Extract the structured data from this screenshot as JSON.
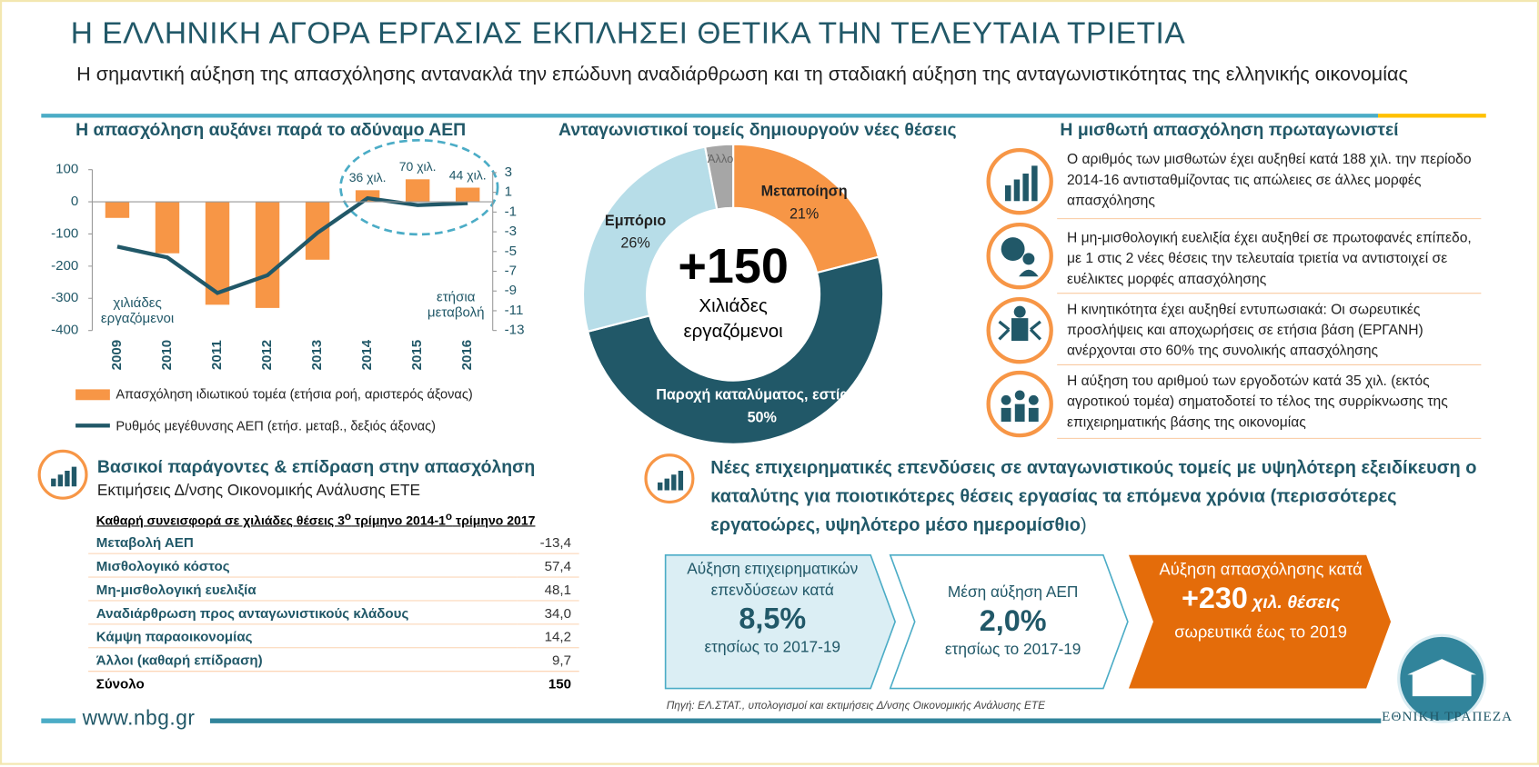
{
  "header": {
    "title": "Η ΕΛΛΗΝΙΚΗ ΑΓΟΡΑ ΕΡΓΑΣΙΑΣ ΕΚΠΛΗΣΕΙ ΘΕΤΙΚΑ ΤΗΝ ΤΕΛΕΥΤΑΙΑ ΤΡΙΕΤΙΑ",
    "subtitle": "Η σημαντική αύξηση της απασχόλησης αντανακλά την επώδυνη αναδιάρθρωση και τη σταδιακή αύξηση της ανταγωνιστικότητας της ελληνικής οικονομίας"
  },
  "chart_data": [
    {
      "type": "bar",
      "title": "Η απασχόληση αυξάνει παρά το αδύναμο ΑΕΠ",
      "categories": [
        "2009",
        "2010",
        "2011",
        "2012",
        "2013",
        "2014",
        "2015",
        "2016"
      ],
      "series": [
        {
          "name": "Απασχόληση ιδιωτικού τομέα (ετήσια ροή, αριστερός άξονας)",
          "color": "#f79646",
          "values": [
            -50,
            -160,
            -320,
            -330,
            -180,
            36,
            70,
            44
          ],
          "value_labels": [
            null,
            null,
            null,
            null,
            null,
            "36 χιλ.",
            "70 χιλ.",
            "44 χιλ."
          ]
        },
        {
          "name": "Ρυθμός μεγέθυνσης ΑΕΠ (ετήσ. μεταβ., δεξιός άξονας)",
          "type": "line",
          "axis": "y2",
          "color": "#215868",
          "values": [
            -4.5,
            -5.6,
            -9.2,
            -7.4,
            -3.1,
            0.4,
            -0.3,
            -0.1
          ]
        }
      ],
      "ylim": [
        -400,
        100
      ],
      "yticks": [
        100,
        0,
        -100,
        -200,
        -300,
        -400
      ],
      "y2lim": [
        -13,
        3
      ],
      "y2ticks": [
        3,
        1,
        -1,
        -3,
        -5,
        -7,
        -9,
        -11,
        -13
      ],
      "ylabel": "χιλιάδες εργαζόμενοι",
      "y2label": "ετήσια μεταβολή"
    },
    {
      "type": "pie",
      "title": "Ανταγωνιστικοί τομείς δημιουργούν νέες θέσεις",
      "categories": [
        "Μεταποίηση",
        "Παροχή καταλύματος, εστίαση",
        "Εμπόριο",
        "Άλλο"
      ],
      "values": [
        21,
        50,
        26,
        3
      ],
      "value_labels": [
        "21%",
        "50%",
        "26%",
        null
      ],
      "colors": [
        "#f79646",
        "#215868",
        "#b7dde8",
        "#a6a6a6"
      ],
      "center_value": "+150",
      "center_label": "Χιλιάδες εργαζόμενοι"
    }
  ],
  "panel": {
    "title": "Η μισθωτή απασχόληση πρωταγωνιστεί",
    "items": [
      "Ο αριθμός των μισθωτών έχει αυξηθεί κατά 188 χιλ. την περίοδο 2014-16 αντισταθμίζοντας τις απώλειες σε άλλες μορφές απασχόλησης",
      "Η μη-μισθολογική ευελιξία έχει αυξηθεί σε πρωτοφανές επίπεδο, με 1 στις 2 νέες θέσεις την τελευταία τριετία να αντιστοιχεί σε ευέλικτες μορφές απασχόλησης",
      "Η κινητικότητα έχει αυξηθεί εντυπωσιακά: Οι σωρευτικές προσλήψεις και αποχωρήσεις σε ετήσια βάση (ΕΡΓΑΝΗ) ανέρχονται στο 60% της συνολικής απασχόλησης",
      "Η αύξηση του αριθμού των εργοδοτών κατά 35 χιλ. (εκτός αγροτικού τομέα) σηματοδοτεί το τέλος της συρρίκνωσης της επιχειρηματικής βάσης της οικονομίας"
    ]
  },
  "table": {
    "title": "Βασικοί παράγοντες & επίδραση στην απασχόληση",
    "subtitle": "Εκτιμήσεις Δ/νσης Οικονομικής Ανάλυσης ΕΤΕ",
    "header": [
      "Καθαρή συνεισφορά σε χιλιάδες θέσεις 3",
      "ο",
      " τρίμηνο 2014-1",
      "ο",
      " τρίμηνο 2017"
    ],
    "rows": [
      [
        "Μεταβολή ΑΕΠ",
        "-13,4"
      ],
      [
        "Μισθολογικό κόστος",
        "57,4"
      ],
      [
        "Μη-μισθολογική ευελιξία",
        "48,1"
      ],
      [
        "Αναδιάρθρωση προς ανταγωνιστικούς κλάδους",
        "34,0"
      ],
      [
        "Κάμψη παραοικονομίας",
        "14,2"
      ],
      [
        "Άλλοι (καθαρή επίδραση)",
        "9,7"
      ]
    ],
    "total": [
      "Σύνολο",
      "150"
    ]
  },
  "outlook": {
    "title": "Νέες επιχειρηματικές επενδύσεις σε ανταγωνιστικούς τομείς με υψηλότερη εξειδίκευση ο καταλύτης για ποιοτικότερες θέσεις εργασίας τα επόμενα χρόνια (περισσότερες εργατοώρες, υψηλότερο μέσο ημερομίσθιο",
    "title_end": ")",
    "boxes": [
      {
        "top": "Αύξηση επιχειρηματικών επενδύσεων κατά",
        "value": "8,5%",
        "bottom": "ετησίως το 2017-19"
      },
      {
        "top": "Μέση αύξηση ΑΕΠ",
        "value": "2,0%",
        "bottom": "ετησίως το 2017-19"
      },
      {
        "top": "Αύξηση απασχόλησης κατά",
        "value": "+230",
        "unit": "χιλ. θέσεις",
        "bottom": "σωρευτικά έως το 2019"
      }
    ],
    "source": "Πηγή: ΕΛ.ΣΤΑΤ., υπολογισμοί και εκτιμήσεις Δ/νσης Οικονομικής Ανάλυσης ΕΤΕ"
  },
  "footer": {
    "url": "www.nbg.gr",
    "bank": "ΕΘΝΙΚΗ ΤΡΑΠΕΖΑ"
  }
}
